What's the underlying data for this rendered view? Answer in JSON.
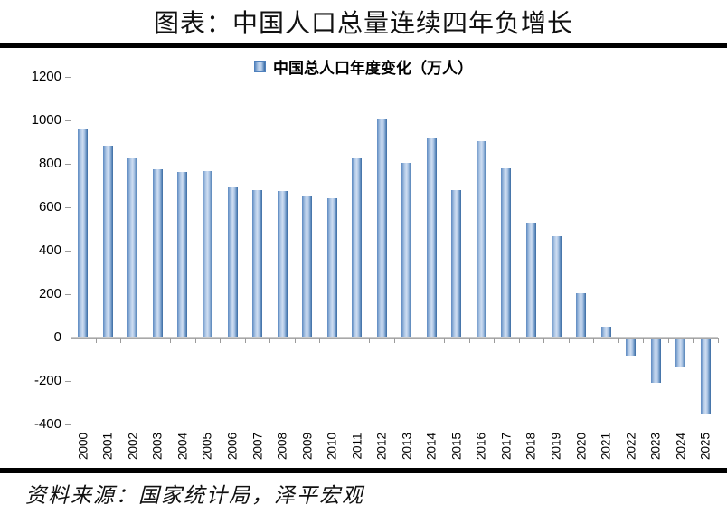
{
  "title": "图表：中国人口总量连续四年负增长",
  "legend": {
    "label": "中国总人口年度变化（万人）"
  },
  "source": "资料来源：国家统计局，泽平宏观",
  "colors": {
    "bar_edge": "#4f81bd",
    "bar_center": "#cfdef2",
    "axis_gray": "#9b9b9b",
    "rule_black": "#000000"
  },
  "chart_data": {
    "type": "bar",
    "title": "中国总人口年度变化（万人）",
    "legend_entries": [
      "中国总人口年度变化（万人）"
    ],
    "legend_position": "top",
    "grid": false,
    "categories": [
      "2000",
      "2001",
      "2002",
      "2003",
      "2004",
      "2005",
      "2006",
      "2007",
      "2008",
      "2009",
      "2010",
      "2011",
      "2012",
      "2013",
      "2014",
      "2015",
      "2016",
      "2017",
      "2018",
      "2019",
      "2020",
      "2021",
      "2022",
      "2023",
      "2024",
      "2025"
    ],
    "values": [
      957,
      884,
      826,
      774,
      761,
      768,
      692,
      681,
      673,
      652,
      641,
      825,
      1006,
      804,
      920,
      680,
      906,
      779,
      530,
      467,
      204,
      48,
      -85,
      -208,
      -139,
      -350
    ],
    "ylabel": "",
    "xlabel": "",
    "ylim": [
      -400,
      1200
    ],
    "yticks": [
      1200,
      1000,
      800,
      600,
      400,
      200,
      0,
      -200,
      -400
    ]
  }
}
